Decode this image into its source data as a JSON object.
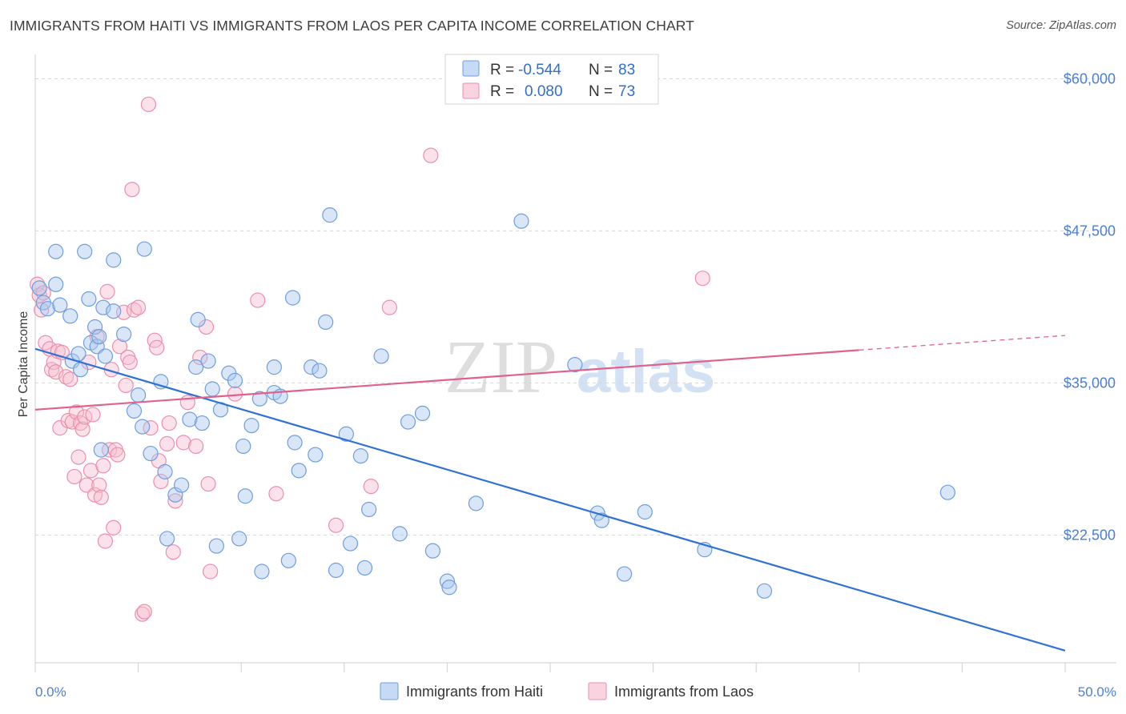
{
  "title": "IMMIGRANTS FROM HAITI VS IMMIGRANTS FROM LAOS PER CAPITA INCOME CORRELATION CHART",
  "source": "Source: ZipAtlas.com",
  "watermark": {
    "zip": "ZIP",
    "atlas": "atlas"
  },
  "colors": {
    "haiti_fill": "#a9c8f0",
    "haiti_stroke": "#6f9ede",
    "haiti_line": "#2f72d4",
    "laos_fill": "#f6bfd0",
    "laos_stroke": "#ec8fac",
    "laos_line": "#e0628c",
    "axis_text": "#4a7fd4",
    "grid": "#d8d8d8"
  },
  "legend": {
    "rows": [
      {
        "r_label": "R =",
        "r_value": "-0.544",
        "n_label": "N =",
        "n_value": "83"
      },
      {
        "r_label": "R =",
        "r_value": "0.080",
        "n_label": "N =",
        "n_value": "73"
      }
    ]
  },
  "bottom_legend": [
    "Immigrants from Haiti",
    "Immigrants from Laos"
  ],
  "chart_data": {
    "type": "scatter",
    "title": "IMMIGRANTS FROM HAITI VS IMMIGRANTS FROM LAOS PER CAPITA INCOME CORRELATION CHART",
    "xlabel": "",
    "ylabel": "Per Capita Income",
    "xlim": [
      0,
      50
    ],
    "ylim": [
      12000,
      62000
    ],
    "x_tick_labels": [
      "0.0%",
      "50.0%"
    ],
    "y_ticks": [
      22500,
      35000,
      47500,
      60000
    ],
    "y_tick_labels": [
      "$22,500",
      "$35,000",
      "$47,500",
      "$60,000"
    ],
    "grid": true,
    "legend_position": "top-center",
    "series": [
      {
        "name": "Immigrants from Haiti",
        "R": -0.544,
        "N": 83,
        "trend": {
          "x": [
            0,
            50
          ],
          "y": [
            37800,
            13000
          ]
        },
        "points": [
          [
            0.2,
            42800
          ],
          [
            0.4,
            41600
          ],
          [
            0.6,
            41100
          ],
          [
            1.0,
            45800
          ],
          [
            1.0,
            43100
          ],
          [
            1.2,
            41400
          ],
          [
            1.7,
            40500
          ],
          [
            1.8,
            36800
          ],
          [
            2.1,
            37400
          ],
          [
            2.2,
            36100
          ],
          [
            2.4,
            45800
          ],
          [
            2.6,
            41900
          ],
          [
            2.7,
            38300
          ],
          [
            2.9,
            39600
          ],
          [
            3.0,
            38000
          ],
          [
            3.1,
            38800
          ],
          [
            3.2,
            29500
          ],
          [
            3.3,
            41200
          ],
          [
            3.4,
            37200
          ],
          [
            3.8,
            45100
          ],
          [
            3.8,
            40900
          ],
          [
            4.3,
            39000
          ],
          [
            4.8,
            32700
          ],
          [
            5.0,
            34000
          ],
          [
            5.2,
            31400
          ],
          [
            5.3,
            46000
          ],
          [
            5.6,
            29200
          ],
          [
            6.1,
            35100
          ],
          [
            6.3,
            27700
          ],
          [
            6.4,
            22200
          ],
          [
            6.8,
            25800
          ],
          [
            7.1,
            26600
          ],
          [
            7.5,
            32000
          ],
          [
            7.8,
            36300
          ],
          [
            7.9,
            40200
          ],
          [
            8.1,
            31700
          ],
          [
            8.4,
            36800
          ],
          [
            8.6,
            34500
          ],
          [
            8.8,
            21600
          ],
          [
            9.0,
            32800
          ],
          [
            9.4,
            35800
          ],
          [
            9.7,
            35200
          ],
          [
            9.9,
            22200
          ],
          [
            10.1,
            29800
          ],
          [
            10.2,
            25700
          ],
          [
            10.5,
            31500
          ],
          [
            10.9,
            33700
          ],
          [
            11.0,
            19500
          ],
          [
            11.6,
            34200
          ],
          [
            11.6,
            36300
          ],
          [
            11.9,
            33900
          ],
          [
            12.3,
            20400
          ],
          [
            12.5,
            42000
          ],
          [
            12.6,
            30100
          ],
          [
            12.8,
            27800
          ],
          [
            13.4,
            36300
          ],
          [
            13.6,
            29100
          ],
          [
            13.8,
            36000
          ],
          [
            14.1,
            40000
          ],
          [
            14.3,
            48800
          ],
          [
            14.6,
            19600
          ],
          [
            15.1,
            30800
          ],
          [
            15.3,
            21800
          ],
          [
            15.8,
            29000
          ],
          [
            16.0,
            19800
          ],
          [
            16.2,
            24600
          ],
          [
            16.8,
            37200
          ],
          [
            17.7,
            22600
          ],
          [
            18.1,
            31800
          ],
          [
            18.8,
            32500
          ],
          [
            19.3,
            21200
          ],
          [
            20.0,
            18700
          ],
          [
            20.1,
            18200
          ],
          [
            21.4,
            25100
          ],
          [
            23.6,
            48300
          ],
          [
            26.2,
            36500
          ],
          [
            27.3,
            24300
          ],
          [
            27.5,
            23700
          ],
          [
            28.6,
            19300
          ],
          [
            29.6,
            24400
          ],
          [
            32.5,
            21300
          ],
          [
            35.4,
            17900
          ],
          [
            44.3,
            26000
          ]
        ]
      },
      {
        "name": "Immigrants from Laos",
        "R": 0.08,
        "N": 73,
        "trend": {
          "x": [
            0,
            40
          ],
          "y": [
            32800,
            37700
          ]
        },
        "trend_dashed": {
          "x": [
            40,
            50
          ],
          "y": [
            37700,
            38900
          ]
        },
        "points": [
          [
            0.1,
            43100
          ],
          [
            0.2,
            42200
          ],
          [
            0.3,
            41000
          ],
          [
            0.4,
            42400
          ],
          [
            0.5,
            38300
          ],
          [
            0.7,
            37800
          ],
          [
            0.8,
            36100
          ],
          [
            0.9,
            36700
          ],
          [
            1.0,
            35900
          ],
          [
            1.1,
            37600
          ],
          [
            1.2,
            31300
          ],
          [
            1.3,
            37500
          ],
          [
            1.5,
            35500
          ],
          [
            1.6,
            31900
          ],
          [
            1.7,
            35300
          ],
          [
            1.8,
            31800
          ],
          [
            1.9,
            27300
          ],
          [
            2.0,
            32600
          ],
          [
            2.1,
            28900
          ],
          [
            2.2,
            31700
          ],
          [
            2.3,
            31200
          ],
          [
            2.4,
            32200
          ],
          [
            2.5,
            26600
          ],
          [
            2.6,
            36700
          ],
          [
            2.7,
            27800
          ],
          [
            2.8,
            32400
          ],
          [
            2.9,
            25800
          ],
          [
            3.0,
            38800
          ],
          [
            3.1,
            26600
          ],
          [
            3.2,
            25600
          ],
          [
            3.3,
            28200
          ],
          [
            3.4,
            22000
          ],
          [
            3.5,
            42500
          ],
          [
            3.6,
            29500
          ],
          [
            3.7,
            36100
          ],
          [
            3.8,
            23100
          ],
          [
            3.9,
            29500
          ],
          [
            4.0,
            29100
          ],
          [
            4.1,
            38000
          ],
          [
            4.3,
            40800
          ],
          [
            4.4,
            34800
          ],
          [
            4.5,
            37100
          ],
          [
            4.6,
            36700
          ],
          [
            4.7,
            50900
          ],
          [
            4.8,
            41000
          ],
          [
            5.0,
            41200
          ],
          [
            5.2,
            16000
          ],
          [
            5.3,
            16200
          ],
          [
            5.5,
            57900
          ],
          [
            5.6,
            31300
          ],
          [
            5.8,
            38500
          ],
          [
            5.9,
            37900
          ],
          [
            6.0,
            28600
          ],
          [
            6.1,
            26900
          ],
          [
            6.4,
            30000
          ],
          [
            6.5,
            31700
          ],
          [
            6.7,
            21100
          ],
          [
            6.8,
            25300
          ],
          [
            7.2,
            30100
          ],
          [
            7.4,
            33400
          ],
          [
            7.8,
            29800
          ],
          [
            8.0,
            37100
          ],
          [
            8.3,
            39600
          ],
          [
            8.4,
            26700
          ],
          [
            8.5,
            19500
          ],
          [
            9.7,
            34100
          ],
          [
            10.8,
            41800
          ],
          [
            11.7,
            25900
          ],
          [
            14.6,
            23300
          ],
          [
            16.3,
            26500
          ],
          [
            17.2,
            41200
          ],
          [
            19.2,
            53700
          ],
          [
            32.4,
            43600
          ]
        ]
      }
    ]
  }
}
